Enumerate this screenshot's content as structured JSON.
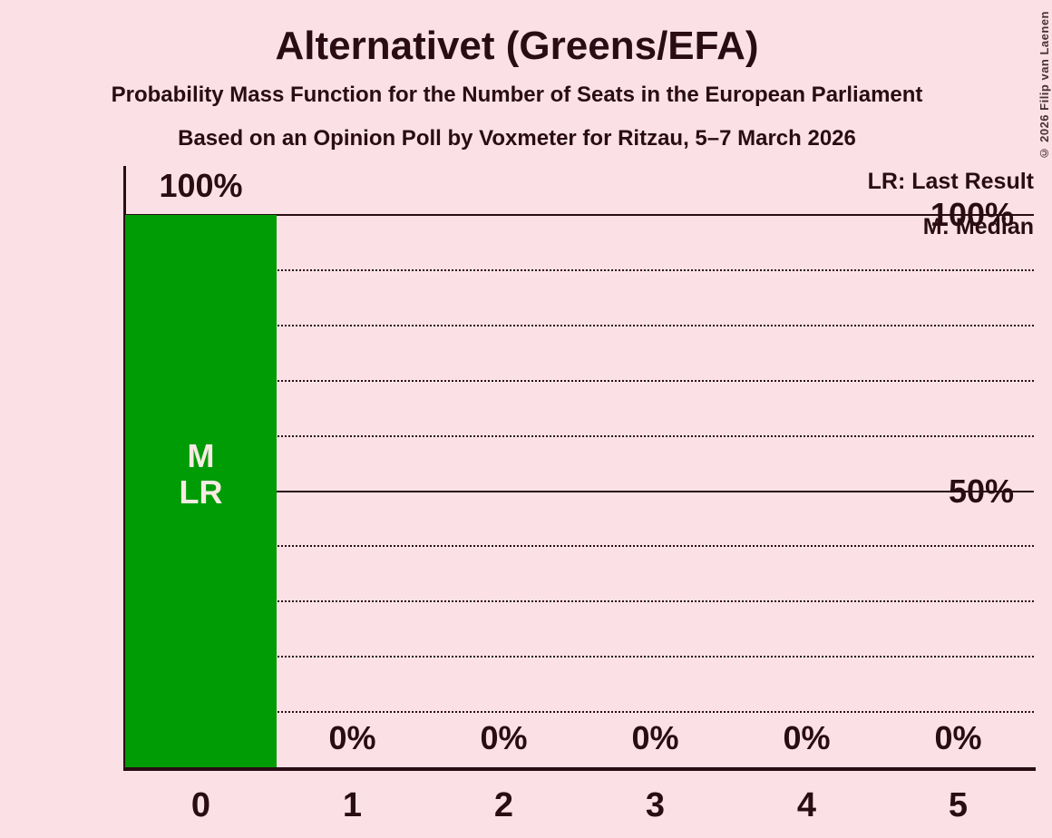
{
  "page": {
    "background": "#FBE1E6",
    "text_color": "#2A0D14"
  },
  "header": {
    "title": "Alternativet (Greens/EFA)",
    "subtitle1": "Probability Mass Function for the Number of Seats in the European Parliament",
    "subtitle2": "Based on an Opinion Poll by Voxmeter for Ritzau, 5–7 March 2026"
  },
  "legend": {
    "lr_label": "LR: Last Result",
    "m_label": "M: Median"
  },
  "copyright_notice": "© 2026 Filip van Laenen",
  "y_axis": {
    "labels": [
      "100%",
      "50%"
    ]
  },
  "chart_data": {
    "type": "bar",
    "title": "Alternativet (Greens/EFA)",
    "xlabel": "",
    "ylabel": "",
    "categories": [
      "0",
      "1",
      "2",
      "3",
      "4",
      "5"
    ],
    "values": [
      100,
      0,
      0,
      0,
      0,
      0
    ],
    "value_labels": [
      "100%",
      "0%",
      "0%",
      "0%",
      "0%",
      "0%"
    ],
    "ylim": [
      0,
      100
    ],
    "ytick_labels": [
      "100%",
      "50%"
    ],
    "gridline_step_pct": 10,
    "solid_gridlines_pct": [
      50,
      100
    ],
    "grid": "on",
    "legend_entries": [
      "LR: Last Result",
      "M: Median"
    ],
    "legend_position": "top-right",
    "bar_color": "#009C06",
    "bar_label_color": "#F9EAE3",
    "bar_annotations": [
      {
        "category_index": 0,
        "lines": [
          "M",
          "LR"
        ]
      }
    ]
  }
}
